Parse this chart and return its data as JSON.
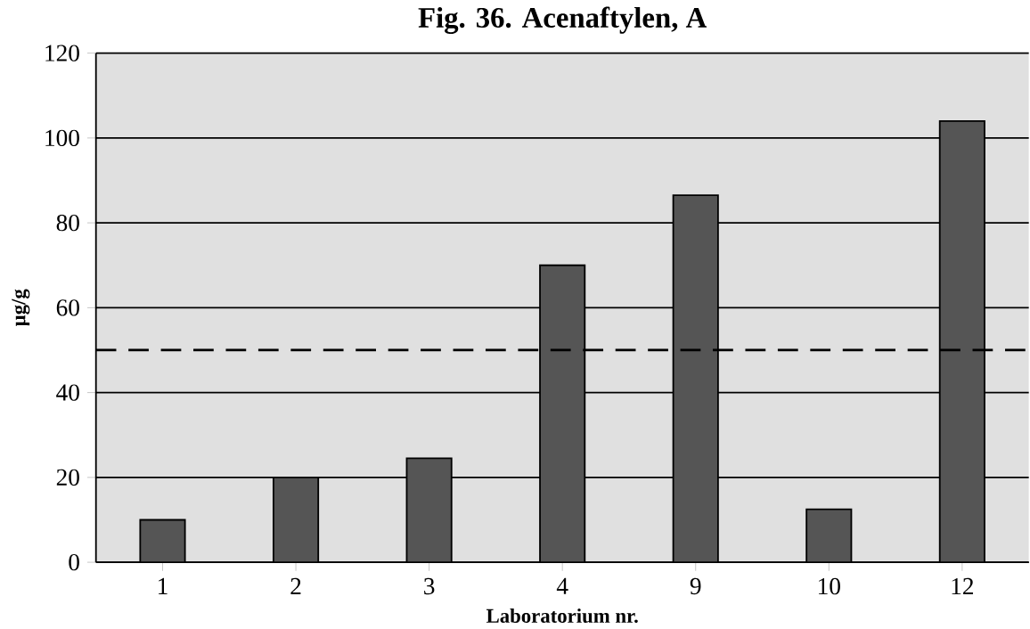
{
  "chart_data": {
    "type": "bar",
    "title": "Fig. 36.  Acenaftylen, A",
    "xlabel": "Laboratorium nr.",
    "ylabel": "µg/g",
    "categories": [
      "1",
      "2",
      "3",
      "4",
      "9",
      "10",
      "12"
    ],
    "values": [
      10,
      20,
      24.5,
      70,
      86.5,
      12.5,
      104
    ],
    "color": "#555555",
    "ylim": [
      0,
      120
    ],
    "yticks": [
      0,
      20,
      40,
      60,
      80,
      100,
      120
    ],
    "grid": "y",
    "ref_lines": [
      {
        "axis": "y",
        "value": 50,
        "line_style": "dashed",
        "color": "#000000"
      }
    ]
  }
}
